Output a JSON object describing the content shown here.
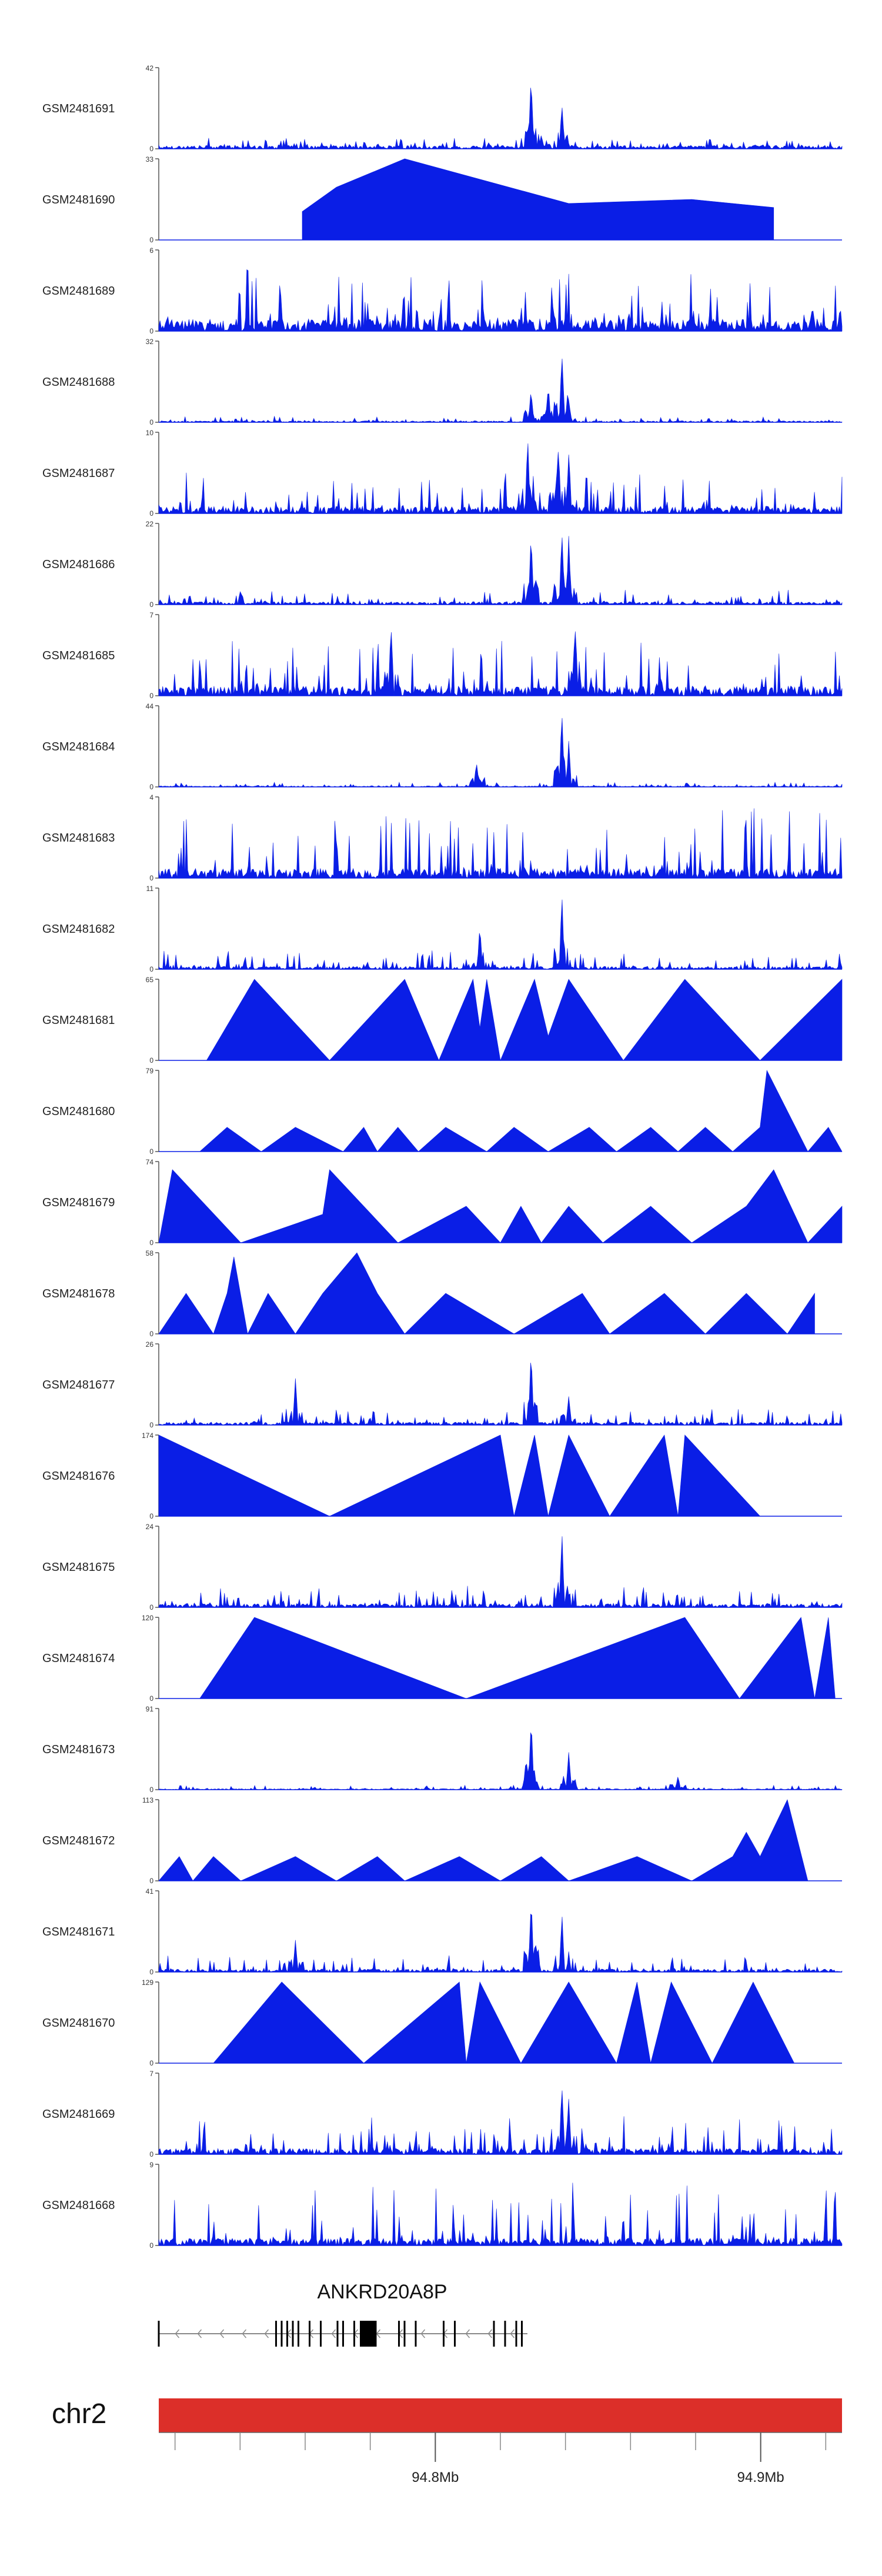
{
  "colors": {
    "signal": "#0a1ee6",
    "axis": "#555555",
    "chrom_bar": "#dc2f29",
    "gene": "#000000",
    "intron": "#888888"
  },
  "chart_data": {
    "type": "area",
    "title": "",
    "xlabel": "",
    "ylabel": "",
    "region": {
      "chrom": "chr2",
      "start_mb": 94.715,
      "end_mb": 94.925
    },
    "x_ticks": [
      {
        "mb": 94.8,
        "label": "94.8Mb"
      },
      {
        "mb": 94.9,
        "label": "94.9Mb"
      }
    ],
    "tracks": [
      {
        "name": "GSM2481691",
        "ymax": 42,
        "ymin": 0,
        "style": "spiky",
        "base": 0.07,
        "noise": 0.12,
        "peaks": [
          [
            0.545,
            1.0
          ],
          [
            0.59,
            0.6
          ],
          [
            0.56,
            0.2
          ]
        ]
      },
      {
        "name": "GSM2481690",
        "ymax": 33,
        "ymin": 0,
        "style": "triangles",
        "peaks": [
          [
            0.21,
            0.35
          ],
          [
            0.26,
            0.65
          ],
          [
            0.36,
            1.0
          ],
          [
            0.6,
            0.45
          ],
          [
            0.78,
            0.5
          ],
          [
            0.9,
            0.4
          ]
        ]
      },
      {
        "name": "GSM2481689",
        "ymax": 6,
        "ymin": 0,
        "style": "noise",
        "base": 0.25,
        "noise": 0.7,
        "peaks": []
      },
      {
        "name": "GSM2481688",
        "ymax": 32,
        "ymin": 0,
        "style": "spiky",
        "base": 0.03,
        "noise": 0.06,
        "peaks": [
          [
            0.545,
            0.45
          ],
          [
            0.59,
            1.0
          ],
          [
            0.57,
            0.5
          ]
        ]
      },
      {
        "name": "GSM2481687",
        "ymax": 10,
        "ymin": 0,
        "style": "spiky",
        "base": 0.15,
        "noise": 0.45,
        "peaks": [
          [
            0.54,
            1.0
          ],
          [
            0.585,
            0.95
          ],
          [
            0.6,
            0.8
          ]
        ]
      },
      {
        "name": "GSM2481686",
        "ymax": 22,
        "ymin": 0,
        "style": "spiky",
        "base": 0.06,
        "noise": 0.15,
        "peaks": [
          [
            0.545,
            0.9
          ],
          [
            0.59,
            1.0
          ],
          [
            0.6,
            0.85
          ]
        ]
      },
      {
        "name": "GSM2481685",
        "ymax": 7,
        "ymin": 0,
        "style": "noise",
        "base": 0.2,
        "noise": 0.6,
        "peaks": [
          [
            0.34,
            1.0
          ],
          [
            0.61,
            0.95
          ]
        ]
      },
      {
        "name": "GSM2481684",
        "ymax": 44,
        "ymin": 0,
        "style": "spiky",
        "base": 0.02,
        "noise": 0.05,
        "peaks": [
          [
            0.465,
            0.35
          ],
          [
            0.59,
            1.0
          ],
          [
            0.6,
            0.6
          ]
        ]
      },
      {
        "name": "GSM2481683",
        "ymax": 4,
        "ymin": 0,
        "style": "noise",
        "base": 0.2,
        "noise": 0.8,
        "peaks": []
      },
      {
        "name": "GSM2481682",
        "ymax": 11,
        "ymin": 0,
        "style": "spiky",
        "base": 0.06,
        "noise": 0.2,
        "peaks": [
          [
            0.47,
            0.6
          ],
          [
            0.59,
            0.95
          ]
        ]
      },
      {
        "name": "GSM2481681",
        "ymax": 65,
        "ymin": 0,
        "style": "triangles",
        "peaks": [
          [
            0.07,
            0.0
          ],
          [
            0.14,
            1.0
          ],
          [
            0.25,
            0.0
          ],
          [
            0.36,
            1.0
          ],
          [
            0.41,
            0.0
          ],
          [
            0.46,
            1.0
          ],
          [
            0.47,
            0.4
          ],
          [
            0.48,
            1.0
          ],
          [
            0.5,
            0.0
          ],
          [
            0.55,
            1.0
          ],
          [
            0.57,
            0.3
          ],
          [
            0.6,
            1.0
          ],
          [
            0.68,
            0.0
          ],
          [
            0.77,
            1.0
          ],
          [
            0.88,
            0.0
          ],
          [
            1.0,
            1.0
          ]
        ]
      },
      {
        "name": "GSM2481680",
        "ymax": 79,
        "ymin": 0,
        "style": "triangles",
        "peaks": [
          [
            0.06,
            0.0
          ],
          [
            0.1,
            0.3
          ],
          [
            0.15,
            0.0
          ],
          [
            0.2,
            0.3
          ],
          [
            0.27,
            0.0
          ],
          [
            0.3,
            0.3
          ],
          [
            0.32,
            0.0
          ],
          [
            0.35,
            0.3
          ],
          [
            0.38,
            0.0
          ],
          [
            0.42,
            0.3
          ],
          [
            0.48,
            0.0
          ],
          [
            0.52,
            0.3
          ],
          [
            0.57,
            0.0
          ],
          [
            0.63,
            0.3
          ],
          [
            0.67,
            0.0
          ],
          [
            0.72,
            0.3
          ],
          [
            0.76,
            0.0
          ],
          [
            0.8,
            0.3
          ],
          [
            0.84,
            0.0
          ],
          [
            0.88,
            0.3
          ],
          [
            0.89,
            1.0
          ],
          [
            0.95,
            0.0
          ],
          [
            0.98,
            0.3
          ],
          [
            1.0,
            0.0
          ]
        ]
      },
      {
        "name": "GSM2481679",
        "ymax": 74,
        "ymin": 0,
        "style": "triangles",
        "peaks": [
          [
            0.0,
            0.0
          ],
          [
            0.02,
            0.9
          ],
          [
            0.12,
            0.0
          ],
          [
            0.24,
            0.35
          ],
          [
            0.25,
            0.9
          ],
          [
            0.35,
            0.0
          ],
          [
            0.45,
            0.45
          ],
          [
            0.5,
            0.0
          ],
          [
            0.53,
            0.45
          ],
          [
            0.56,
            0.0
          ],
          [
            0.6,
            0.45
          ],
          [
            0.65,
            0.0
          ],
          [
            0.72,
            0.45
          ],
          [
            0.78,
            0.0
          ],
          [
            0.86,
            0.45
          ],
          [
            0.9,
            0.9
          ],
          [
            0.95,
            0.0
          ],
          [
            1.0,
            0.45
          ]
        ]
      },
      {
        "name": "GSM2481678",
        "ymax": 58,
        "ymin": 0,
        "style": "triangles",
        "peaks": [
          [
            0.0,
            0.0
          ],
          [
            0.04,
            0.5
          ],
          [
            0.08,
            0.0
          ],
          [
            0.1,
            0.5
          ],
          [
            0.11,
            0.95
          ],
          [
            0.13,
            0.0
          ],
          [
            0.16,
            0.5
          ],
          [
            0.2,
            0.0
          ],
          [
            0.24,
            0.5
          ],
          [
            0.29,
            1.0
          ],
          [
            0.32,
            0.5
          ],
          [
            0.36,
            0.0
          ],
          [
            0.42,
            0.5
          ],
          [
            0.52,
            0.0
          ],
          [
            0.62,
            0.5
          ],
          [
            0.66,
            0.0
          ],
          [
            0.74,
            0.5
          ],
          [
            0.8,
            0.0
          ],
          [
            0.86,
            0.5
          ],
          [
            0.92,
            0.0
          ],
          [
            0.96,
            0.5
          ]
        ]
      },
      {
        "name": "GSM2481677",
        "ymax": 26,
        "ymin": 0,
        "style": "spiky",
        "base": 0.06,
        "noise": 0.18,
        "peaks": [
          [
            0.2,
            0.65
          ],
          [
            0.545,
            1.0
          ],
          [
            0.6,
            0.4
          ]
        ]
      },
      {
        "name": "GSM2481676",
        "ymax": 174,
        "ymin": 0,
        "style": "triangles",
        "peaks": [
          [
            0.0,
            1.0
          ],
          [
            0.25,
            0.0
          ],
          [
            0.5,
            1.0
          ],
          [
            0.52,
            0.0
          ],
          [
            0.55,
            1.0
          ],
          [
            0.57,
            0.0
          ],
          [
            0.6,
            1.0
          ],
          [
            0.66,
            0.0
          ],
          [
            0.74,
            1.0
          ],
          [
            0.76,
            0.0
          ],
          [
            0.77,
            1.0
          ],
          [
            0.88,
            0.0
          ]
        ]
      },
      {
        "name": "GSM2481675",
        "ymax": 24,
        "ymin": 0,
        "style": "spiky",
        "base": 0.08,
        "noise": 0.22,
        "peaks": [
          [
            0.59,
            1.0
          ]
        ]
      },
      {
        "name": "GSM2481674",
        "ymax": 120,
        "ymin": 0,
        "style": "triangles",
        "peaks": [
          [
            0.06,
            0.0
          ],
          [
            0.14,
            1.0
          ],
          [
            0.45,
            0.0
          ],
          [
            0.77,
            1.0
          ],
          [
            0.85,
            0.0
          ],
          [
            0.94,
            1.0
          ],
          [
            0.96,
            0.0
          ],
          [
            0.98,
            1.0
          ],
          [
            0.99,
            0.0
          ]
        ]
      },
      {
        "name": "GSM2481673",
        "ymax": 91,
        "ymin": 0,
        "style": "spiky",
        "base": 0.02,
        "noise": 0.05,
        "peaks": [
          [
            0.545,
            1.0
          ],
          [
            0.6,
            0.5
          ],
          [
            0.76,
            0.2
          ]
        ]
      },
      {
        "name": "GSM2481672",
        "ymax": 113,
        "ymin": 0,
        "style": "triangles",
        "peaks": [
          [
            0.0,
            0.0
          ],
          [
            0.03,
            0.3
          ],
          [
            0.05,
            0.0
          ],
          [
            0.08,
            0.3
          ],
          [
            0.12,
            0.0
          ],
          [
            0.2,
            0.3
          ],
          [
            0.26,
            0.0
          ],
          [
            0.32,
            0.3
          ],
          [
            0.36,
            0.0
          ],
          [
            0.44,
            0.3
          ],
          [
            0.5,
            0.0
          ],
          [
            0.56,
            0.3
          ],
          [
            0.6,
            0.0
          ],
          [
            0.7,
            0.3
          ],
          [
            0.78,
            0.0
          ],
          [
            0.84,
            0.3
          ],
          [
            0.86,
            0.6
          ],
          [
            0.88,
            0.3
          ],
          [
            0.92,
            1.0
          ],
          [
            0.95,
            0.0
          ]
        ]
      },
      {
        "name": "GSM2481671",
        "ymax": 41,
        "ymin": 0,
        "style": "spiky",
        "base": 0.06,
        "noise": 0.18,
        "peaks": [
          [
            0.2,
            0.45
          ],
          [
            0.545,
            1.0
          ],
          [
            0.59,
            0.8
          ]
        ]
      },
      {
        "name": "GSM2481670",
        "ymax": 129,
        "ymin": 0,
        "style": "triangles",
        "peaks": [
          [
            0.08,
            0.0
          ],
          [
            0.18,
            1.0
          ],
          [
            0.3,
            0.0
          ],
          [
            0.44,
            1.0
          ],
          [
            0.45,
            0.0
          ],
          [
            0.47,
            1.0
          ],
          [
            0.53,
            0.0
          ],
          [
            0.6,
            1.0
          ],
          [
            0.67,
            0.0
          ],
          [
            0.7,
            1.0
          ],
          [
            0.72,
            0.0
          ],
          [
            0.75,
            1.0
          ],
          [
            0.81,
            0.0
          ],
          [
            0.87,
            1.0
          ],
          [
            0.93,
            0.0
          ]
        ]
      },
      {
        "name": "GSM2481669",
        "ymax": 7,
        "ymin": 0,
        "style": "spiky",
        "base": 0.12,
        "noise": 0.4,
        "peaks": [
          [
            0.59,
            1.0
          ],
          [
            0.6,
            0.8
          ]
        ]
      },
      {
        "name": "GSM2481668",
        "ymax": 9,
        "ymin": 0,
        "style": "noise",
        "base": 0.15,
        "noise": 0.75,
        "peaks": []
      }
    ],
    "gene": {
      "name": "ANKRD20A8P",
      "strand": "-",
      "start_frac": 0.0,
      "end_frac": 0.66,
      "exons": [
        0.0,
        0.21,
        0.22,
        0.23,
        0.24,
        0.25,
        0.27,
        0.29,
        0.32,
        0.33,
        0.35,
        0.43,
        0.44,
        0.46,
        0.51,
        0.53,
        0.6,
        0.62,
        0.64,
        0.65
      ],
      "thick": [
        0.36,
        0.39
      ]
    },
    "chromosome": {
      "name": "chr2"
    }
  }
}
